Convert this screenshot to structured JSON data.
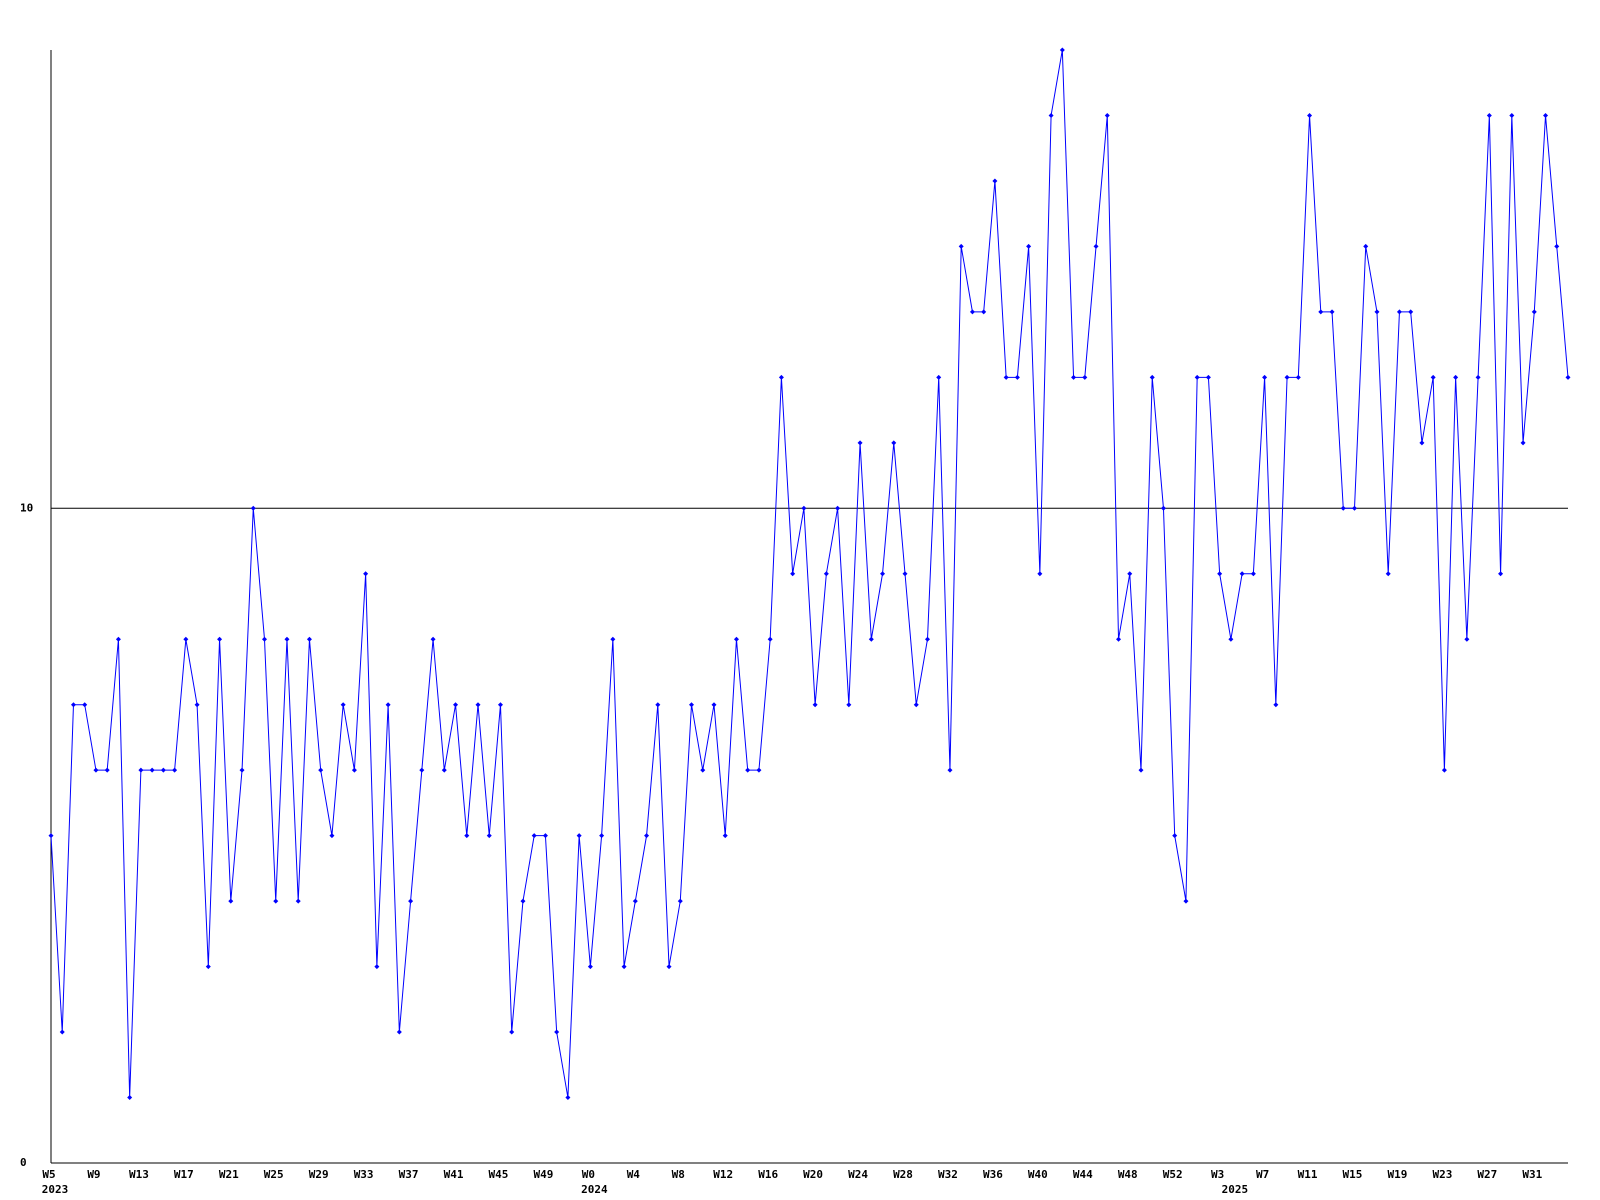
{
  "chart_data": {
    "type": "line",
    "categories": [
      "W5",
      null,
      null,
      null,
      "W9",
      null,
      null,
      null,
      "W13",
      null,
      null,
      null,
      "W17",
      null,
      null,
      null,
      "W21",
      null,
      null,
      null,
      "W25",
      null,
      null,
      null,
      "W29",
      null,
      null,
      null,
      "W33",
      null,
      null,
      null,
      "W37",
      null,
      null,
      null,
      "W41",
      null,
      null,
      null,
      "W45",
      null,
      null,
      null,
      "W49",
      null,
      null,
      null,
      "W0",
      null,
      null,
      null,
      "W4",
      null,
      null,
      null,
      "W8",
      null,
      null,
      null,
      "W12",
      null,
      null,
      null,
      "W16",
      null,
      null,
      null,
      "W20",
      null,
      null,
      null,
      "W24",
      null,
      null,
      null,
      "W28",
      null,
      null,
      null,
      "W32",
      null,
      null,
      null,
      "W36",
      null,
      null,
      null,
      "W40",
      null,
      null,
      null,
      "W44",
      null,
      null,
      null,
      "W48",
      null,
      null,
      null,
      "W52",
      null,
      null,
      null,
      "W3",
      null,
      null,
      null,
      "W7",
      null,
      null,
      null,
      "W11",
      null,
      null,
      null,
      "W15",
      null,
      null,
      null,
      "W19",
      null,
      null,
      null,
      "W23",
      null,
      null,
      null,
      "W27",
      null,
      null,
      null,
      "W31",
      null,
      null,
      null
    ],
    "year_labels": [
      "2023",
      null,
      null,
      null,
      null,
      null,
      null,
      null,
      null,
      null,
      null,
      null,
      null,
      null,
      null,
      null,
      null,
      null,
      null,
      null,
      null,
      null,
      null,
      null,
      null,
      null,
      null,
      null,
      null,
      null,
      null,
      null,
      null,
      null,
      null,
      null,
      null,
      null,
      null,
      null,
      null,
      null,
      null,
      null,
      null,
      null,
      null,
      null,
      "2024",
      null,
      null,
      null,
      null,
      null,
      null,
      null,
      null,
      null,
      null,
      null,
      null,
      null,
      null,
      null,
      null,
      null,
      null,
      null,
      null,
      null,
      null,
      null,
      null,
      null,
      null,
      null,
      null,
      null,
      null,
      null,
      null,
      null,
      null,
      null,
      null,
      null,
      null,
      null,
      null,
      null,
      null,
      null,
      null,
      null,
      null,
      null,
      null,
      null,
      null,
      null,
      null,
      null,
      null,
      null,
      null,
      "2025",
      null,
      null,
      null,
      null,
      null,
      null,
      null,
      null,
      null,
      null,
      null,
      null,
      null,
      null,
      null,
      null,
      null,
      null,
      null,
      null,
      null,
      null,
      null,
      null,
      null,
      null,
      null,
      null,
      null,
      null,
      null,
      null,
      null,
      null
    ],
    "series": [
      {
        "color": "#0000ff",
        "values": [
          5,
          2,
          7,
          7,
          6,
          6,
          8,
          1,
          6,
          6,
          6,
          6,
          8,
          7,
          3,
          8,
          4,
          6,
          10,
          8,
          4,
          8,
          4,
          8,
          6,
          5,
          7,
          6,
          9,
          3,
          7,
          2,
          4,
          6,
          8,
          6,
          7,
          5,
          7,
          5,
          7,
          2,
          4,
          5,
          5,
          2,
          1,
          5,
          3,
          5,
          8,
          3,
          4,
          5,
          7,
          3,
          4,
          7,
          6,
          7,
          5,
          8,
          6,
          6,
          8,
          12,
          9,
          10,
          7,
          9,
          10,
          7,
          11,
          8,
          9,
          11,
          9,
          7,
          8,
          12,
          6,
          14,
          13,
          13,
          15,
          12,
          12,
          14,
          9,
          16,
          17,
          12,
          12,
          14,
          16,
          8,
          9,
          6,
          12,
          10,
          5,
          4,
          12,
          12,
          9,
          8,
          9,
          9,
          12,
          7,
          12,
          12,
          16,
          13,
          13,
          10,
          10,
          14,
          13,
          9,
          13,
          13,
          11,
          12,
          6,
          12,
          8,
          12,
          16,
          9,
          16,
          11,
          13,
          16,
          14,
          12
        ]
      }
    ],
    "ylim": [
      0,
      17
    ],
    "yticks": [
      0,
      10
    ],
    "grid": true
  }
}
